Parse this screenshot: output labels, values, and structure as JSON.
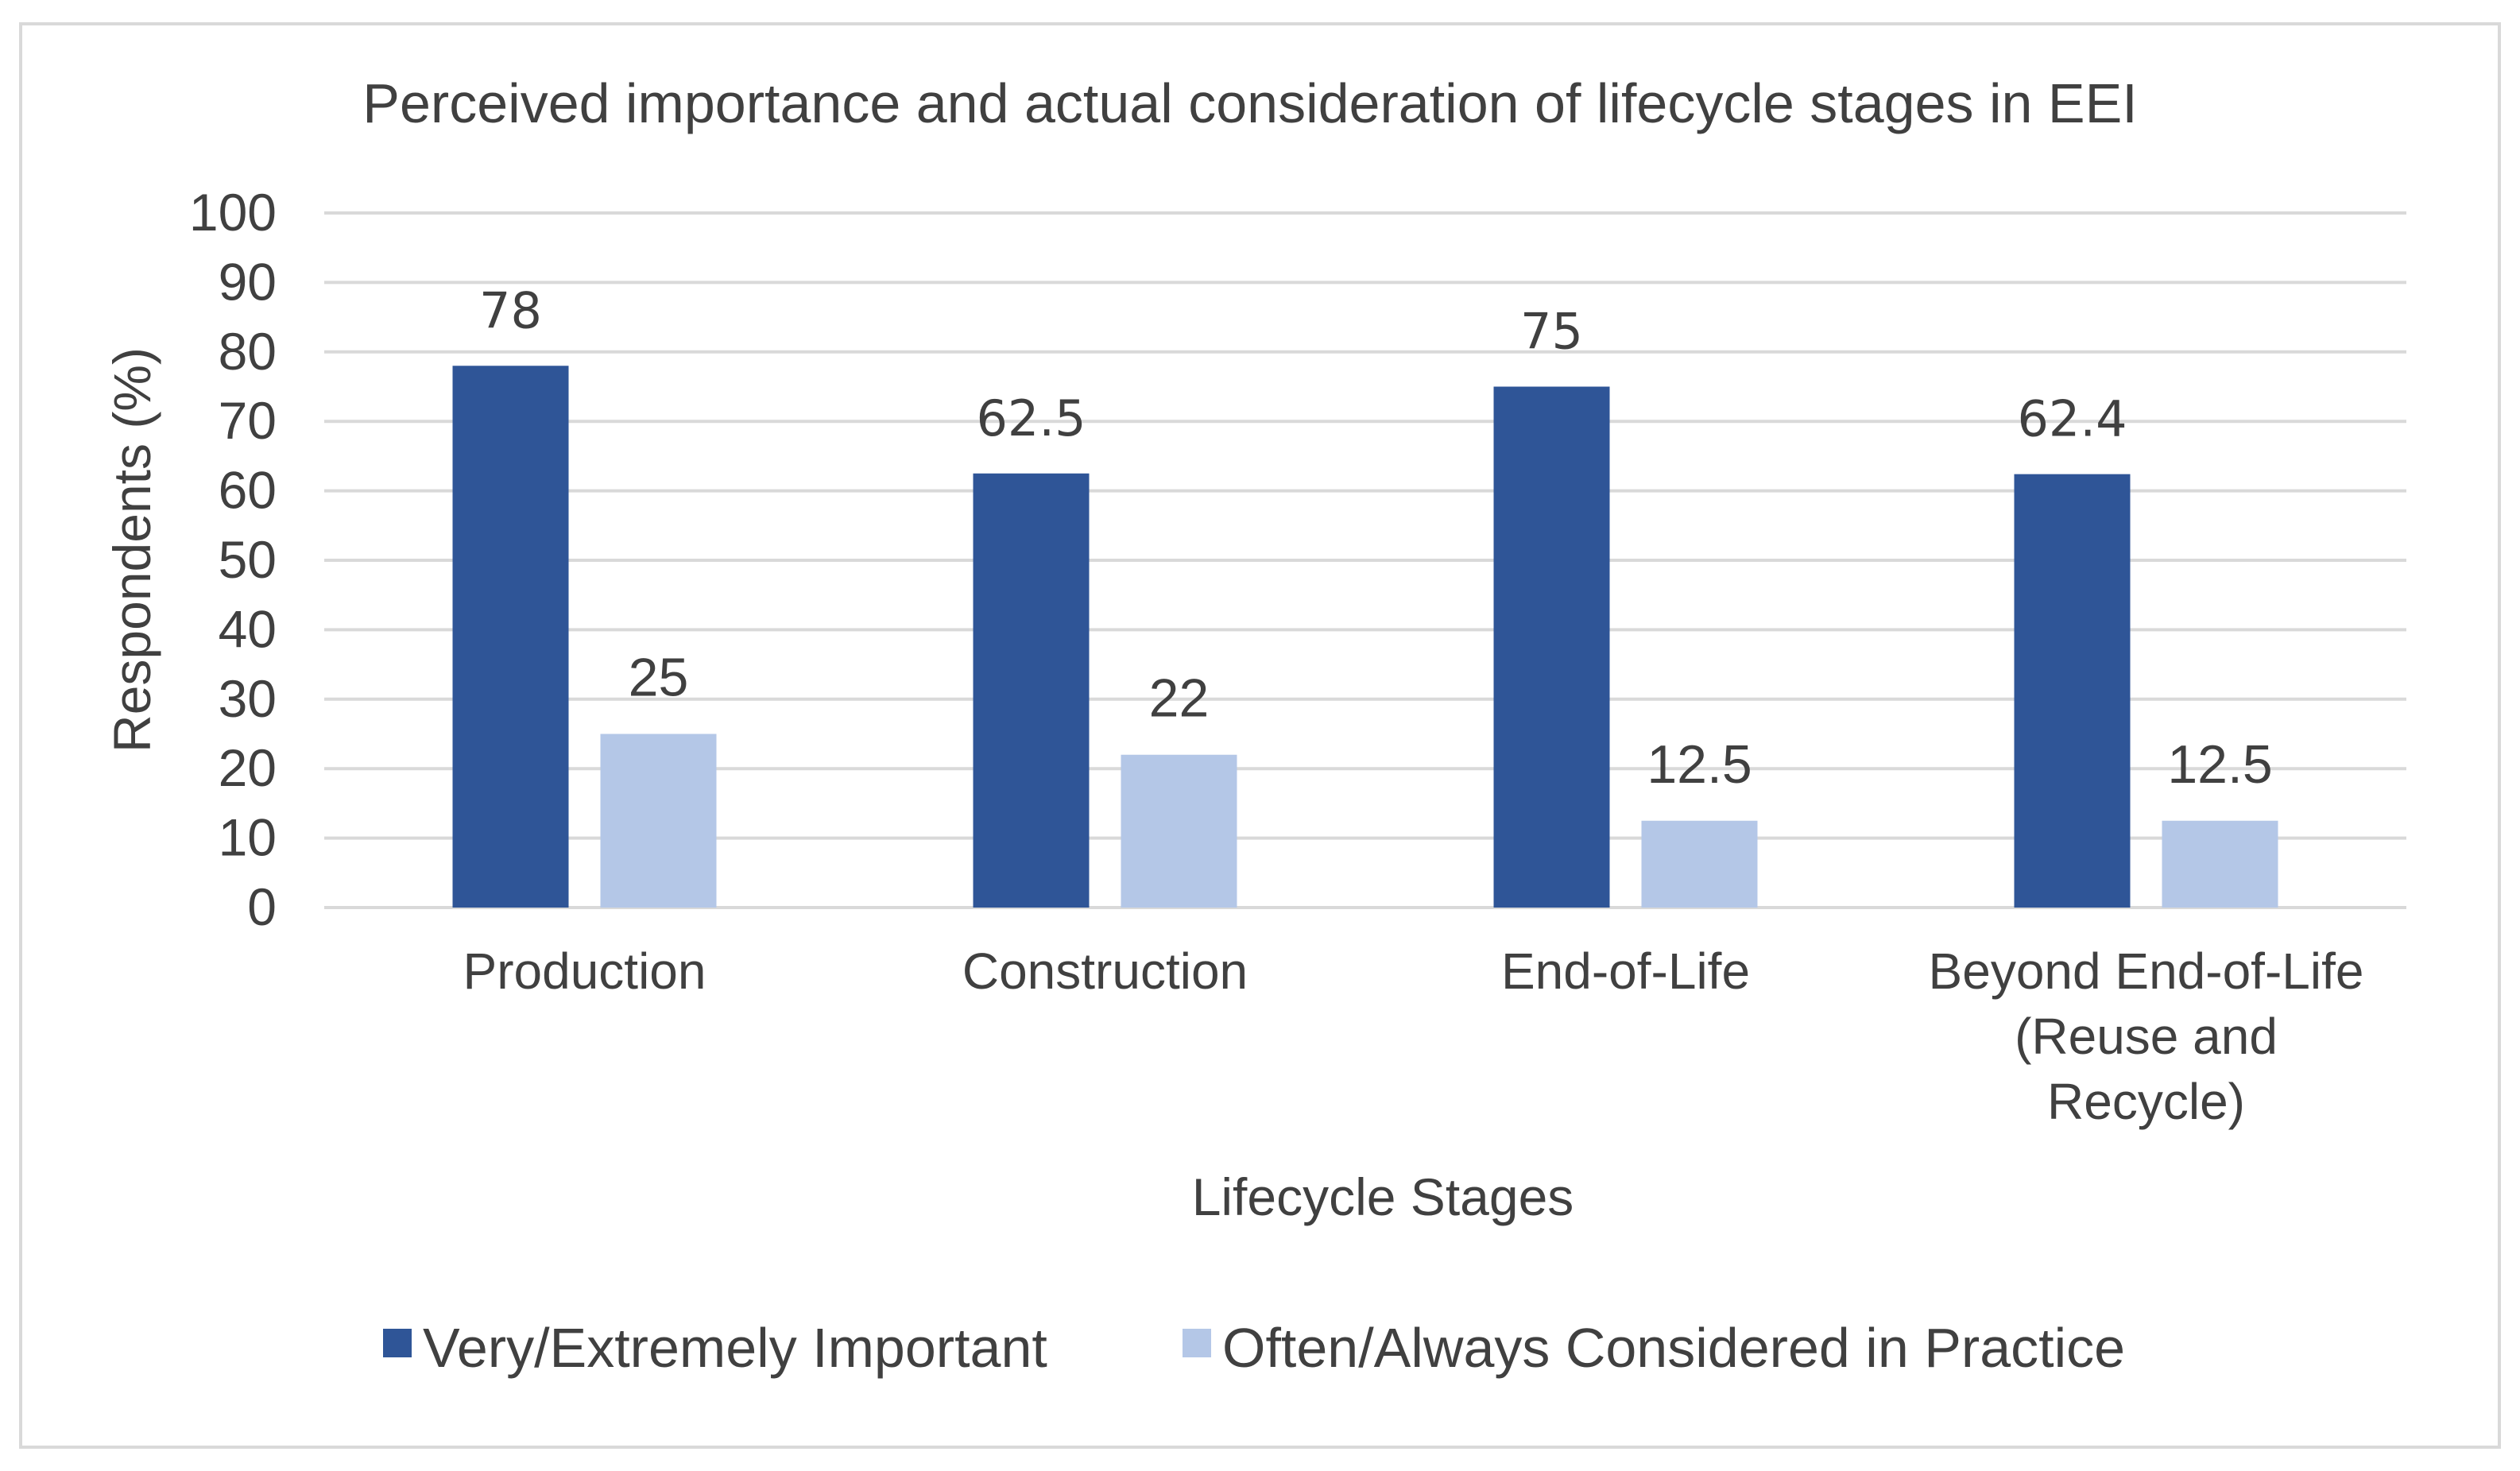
{
  "chart_data": {
    "type": "bar",
    "title": "Perceived importance and actual consideration of lifecycle stages in EEI",
    "xlabel": "Lifecycle Stages",
    "ylabel": "Respondents (%)",
    "ylim": [
      0,
      100
    ],
    "yticks": [
      0,
      10,
      20,
      30,
      40,
      50,
      60,
      70,
      80,
      90,
      100
    ],
    "grid": true,
    "legend_position": "bottom",
    "categories": [
      [
        "Production"
      ],
      [
        "Construction"
      ],
      [
        "End-of-Life"
      ],
      [
        "Beyond End-of-Life",
        "(Reuse and",
        "Recycle)"
      ]
    ],
    "series": [
      {
        "name": "Very/Extremely Important",
        "color": "#2f5597",
        "values": [
          78,
          62.5,
          75,
          62.4
        ],
        "labels": [
          "78",
          "62.5",
          "75",
          "62.4"
        ]
      },
      {
        "name": "Often/Always Considered in Practice",
        "color": "#b4c7e7",
        "values": [
          25,
          22,
          12.5,
          12.5
        ],
        "labels": [
          "25",
          "22",
          "12.5",
          "12.5"
        ]
      }
    ]
  }
}
